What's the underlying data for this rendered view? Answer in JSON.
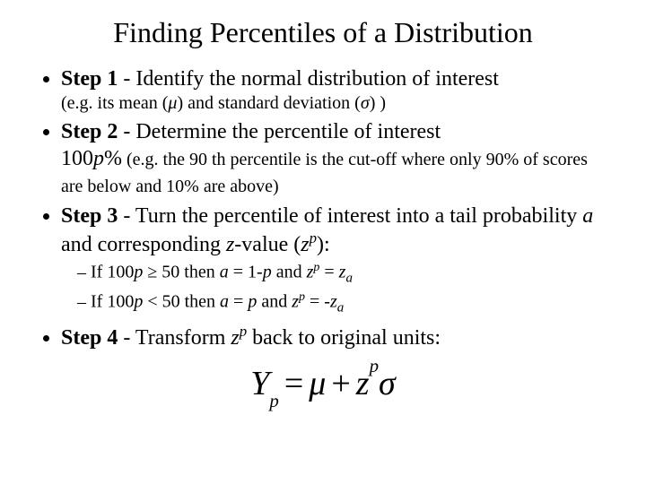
{
  "title": "Finding Percentiles of a Distribution",
  "step1": {
    "label": "Step 1",
    "main": " - Identify the normal distribution of interest",
    "note_pre": "(e.g. its mean (",
    "mu": "μ",
    "note_mid": ") and standard deviation (",
    "sigma": "σ",
    "note_post": ") )"
  },
  "step2": {
    "label": "Step 2",
    "main": " - Determine the percentile of interest",
    "big": "100",
    "bigital": "p",
    "bigpost": "%",
    "note": " (e.g. the 90 th percentile is the cut-off where only 90% of scores are below and 10% are above)"
  },
  "step3": {
    "label": "Step 3",
    "main_a": " - Turn the percentile of interest into a tail probability ",
    "a": "a",
    "main_b": " and corresponding ",
    "zlit": "z",
    "main_c": "-value (",
    "zp_z": "z",
    "zp_p": "p",
    "main_d": "):",
    "line1": {
      "pre": "If 100",
      "p": "p",
      "ge": " ≥ 50 then ",
      "a": "a",
      "eq1": " = 1-",
      "p2": "p",
      "and": "  and ",
      "z": "z",
      "sp": "p",
      "eq2": " = ",
      "z2": "z",
      "sa": "a"
    },
    "line2": {
      "pre": "If 100",
      "p": "p",
      "lt": " < 50 then ",
      "a": "a",
      "eq1": " = ",
      "p2": "p",
      "and": " and ",
      "z": "z",
      "sp": "p",
      "eq2": " = -",
      "z2": "z",
      "sa": "a"
    }
  },
  "step4": {
    "label": "Step 4",
    "main_a": " - Transform ",
    "z": "z",
    "p": "p",
    "main_b": " back to original units:"
  },
  "formula": {
    "Y": "Y",
    "psub": "p",
    "eq": "=",
    "mu": "μ",
    "plus": "+",
    "z": "z",
    "psup": "p",
    "sigma": "σ"
  }
}
